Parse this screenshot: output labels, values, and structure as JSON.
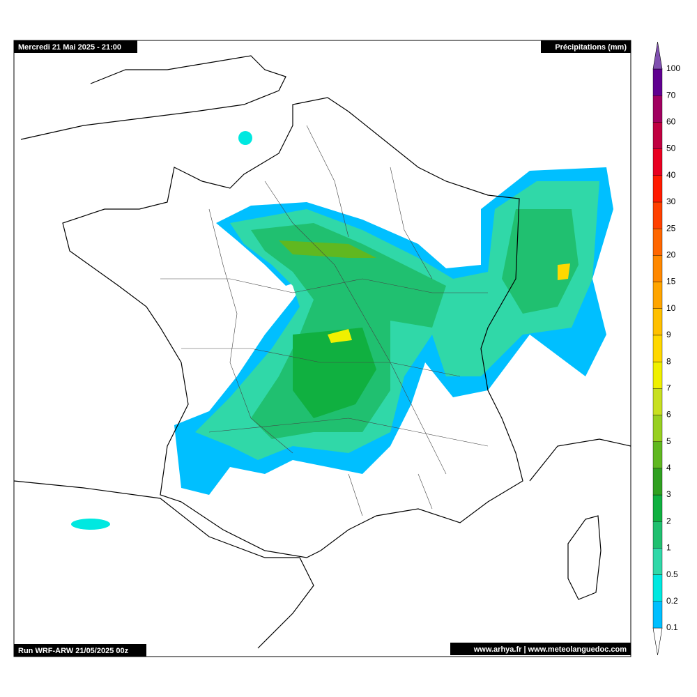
{
  "header": {
    "title": "Mercredi 21 Mai 2025 - 21:00",
    "variable": "Précipitations (mm)"
  },
  "footer": {
    "run": "Run WRF-ARW 21/05/2025 00z",
    "source": "www.arhya.fr | www.meteolanguedoc.com"
  },
  "legend": {
    "levels": [
      {
        "label": "0.1",
        "color": "#00bfff"
      },
      {
        "label": "0.2",
        "color": "#00e8e0"
      },
      {
        "label": "0.5",
        "color": "#30d8a8"
      },
      {
        "label": "1",
        "color": "#20c070"
      },
      {
        "label": "2",
        "color": "#10b040"
      },
      {
        "label": "3",
        "color": "#30a020"
      },
      {
        "label": "4",
        "color": "#60b820"
      },
      {
        "label": "5",
        "color": "#98d020"
      },
      {
        "label": "6",
        "color": "#c8e020"
      },
      {
        "label": "7",
        "color": "#f0f000"
      },
      {
        "label": "8",
        "color": "#ffd800"
      },
      {
        "label": "9",
        "color": "#ffc000"
      },
      {
        "label": "10",
        "color": "#ffa500"
      },
      {
        "label": "15",
        "color": "#ff8800"
      },
      {
        "label": "20",
        "color": "#ff6600"
      },
      {
        "label": "25",
        "color": "#ff4000"
      },
      {
        "label": "30",
        "color": "#ff1a00"
      },
      {
        "label": "40",
        "color": "#e80020"
      },
      {
        "label": "50",
        "color": "#c00040"
      },
      {
        "label": "60",
        "color": "#a00060"
      },
      {
        "label": "70",
        "color": "#600090"
      },
      {
        "label": "100",
        "color": "#8050b0"
      }
    ]
  }
}
